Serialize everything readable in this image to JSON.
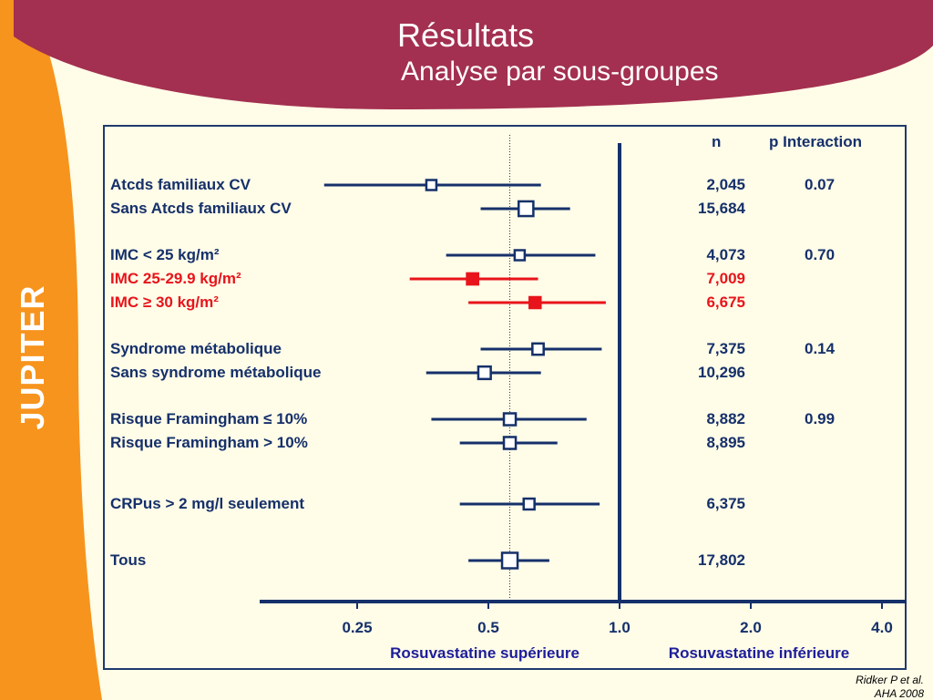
{
  "header": {
    "title": "Résultats",
    "subtitle": "Analyse par sous-groupes",
    "side_label": "JUPITER"
  },
  "colors": {
    "banner": "#a33050",
    "side_band": "#f7941d",
    "background": "#fffce8",
    "navy": "#15306a",
    "red": "#e8141b",
    "favor_text": "#1d1d9a"
  },
  "table_headers": {
    "n": "n",
    "p": "p Interaction"
  },
  "chart_data": {
    "type": "forest",
    "x_scale": "log2",
    "xlim": [
      0.125,
      4.0
    ],
    "reference_line": 1.0,
    "overall_estimate_line": 0.56,
    "ticks": [
      {
        "value": 0.25,
        "label": "0.25"
      },
      {
        "value": 0.5,
        "label": "0.5"
      },
      {
        "value": 1.0,
        "label": "1.0"
      },
      {
        "value": 2.0,
        "label": "2.0"
      },
      {
        "value": 4.0,
        "label": "4.0"
      }
    ],
    "favor_left": "Rosuvastatine supérieure",
    "favor_right": "Rosuvastatine inférieure",
    "rows": [
      {
        "label": "Atcds familiaux CV",
        "n": "2,045",
        "p": "0.07",
        "est": 0.37,
        "lo": 0.21,
        "hi": 0.66,
        "color": "navy"
      },
      {
        "label": "Sans Atcds familiaux CV",
        "n": "15,684",
        "p": "",
        "est": 0.61,
        "lo": 0.48,
        "hi": 0.77,
        "color": "navy"
      },
      {
        "label": "IMC < 25 kg/m²",
        "n": "4,073",
        "p": "0.70",
        "est": 0.59,
        "lo": 0.4,
        "hi": 0.88,
        "color": "navy"
      },
      {
        "label": "IMC 25-29.9 kg/m²",
        "n": "7,009",
        "p": "",
        "est": 0.46,
        "lo": 0.33,
        "hi": 0.65,
        "color": "red"
      },
      {
        "label": "IMC ≥ 30 kg/m²",
        "n": "6,675",
        "p": "",
        "est": 0.64,
        "lo": 0.45,
        "hi": 0.93,
        "color": "red"
      },
      {
        "label": "Syndrome métabolique",
        "n": "7,375",
        "p": "0.14",
        "est": 0.65,
        "lo": 0.48,
        "hi": 0.91,
        "color": "navy"
      },
      {
        "label": "Sans syndrome métabolique",
        "n": "10,296",
        "p": "",
        "est": 0.49,
        "lo": 0.36,
        "hi": 0.66,
        "color": "navy"
      },
      {
        "label": "Risque Framingham ≤ 10%",
        "n": "8,882",
        "p": "0.99",
        "est": 0.56,
        "lo": 0.37,
        "hi": 0.84,
        "color": "navy"
      },
      {
        "label": "Risque Framingham > 10%",
        "n": "8,895",
        "p": "",
        "est": 0.56,
        "lo": 0.43,
        "hi": 0.72,
        "color": "navy"
      },
      {
        "label": "CRPus > 2 mg/l seulement",
        "n": "6,375",
        "p": "",
        "est": 0.62,
        "lo": 0.43,
        "hi": 0.9,
        "color": "navy"
      },
      {
        "label": "Tous",
        "n": "17,802",
        "p": "",
        "est": 0.56,
        "lo": 0.45,
        "hi": 0.69,
        "color": "navy"
      }
    ]
  },
  "source": {
    "line1": "Ridker  P  et al.",
    "line2": "AHA 2008"
  }
}
